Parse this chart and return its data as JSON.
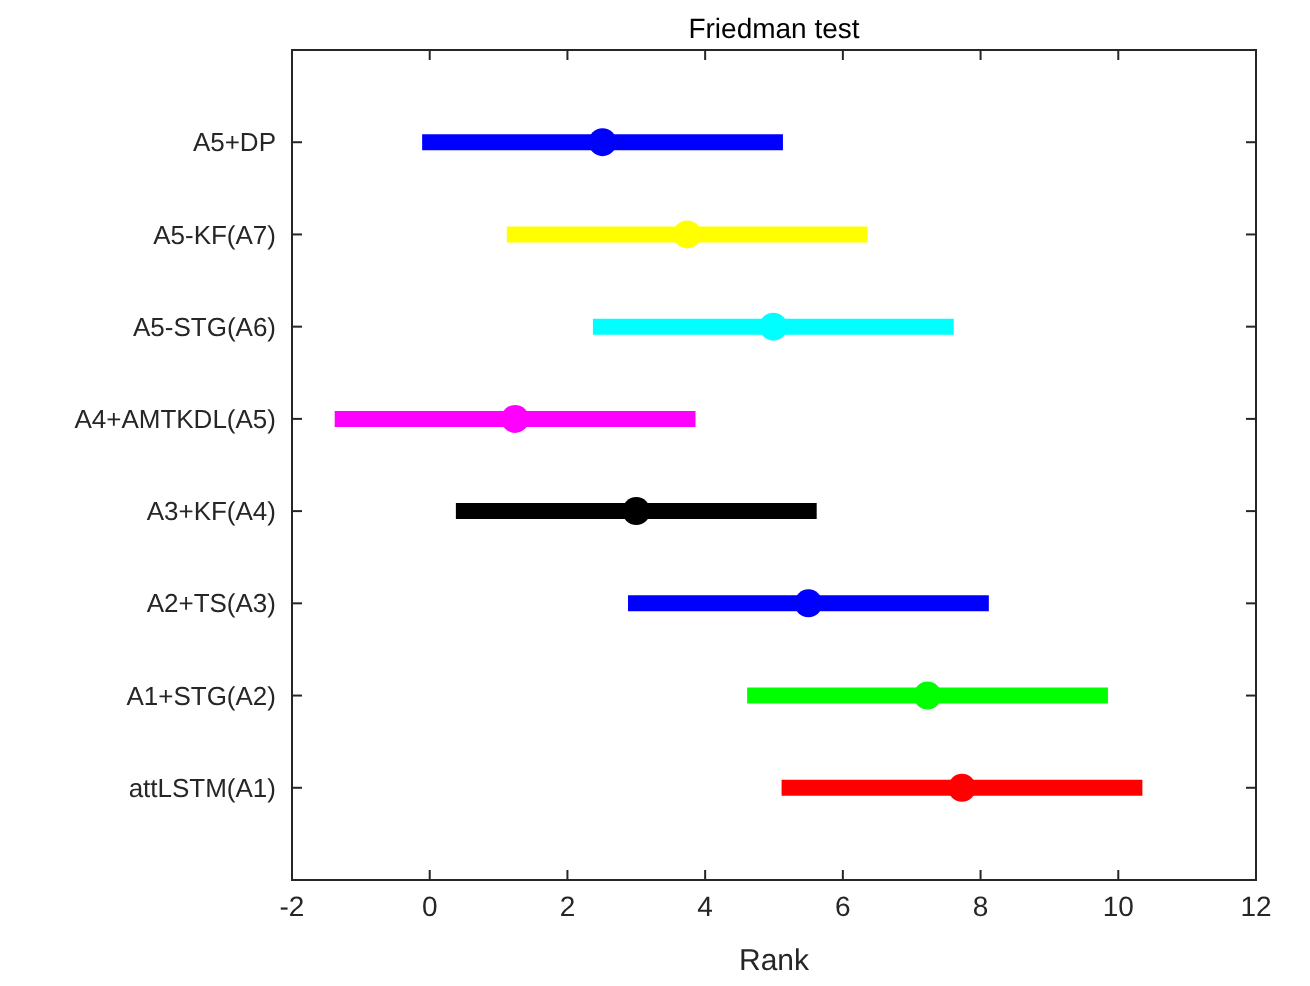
{
  "chart_data": {
    "type": "scatter",
    "orientation": "horizontal",
    "title": "Friedman test",
    "xlabel": "Rank",
    "categories": [
      "A5+DP",
      "A5-KF(A7)",
      "A5-STG(A6)",
      "A4+AMTKDL(A5)",
      "A3+KF(A4)",
      "A2+TS(A3)",
      "A1+STG(A2)",
      "attLSTM(A1)"
    ],
    "values": [
      2.51,
      3.74,
      4.99,
      1.24,
      3.0,
      5.5,
      7.23,
      7.73
    ],
    "errors": [
      2.62,
      2.62,
      2.62,
      2.62,
      2.62,
      2.62,
      2.62,
      2.62
    ],
    "colors": [
      "#0000ff",
      "#ffff00",
      "#00ffff",
      "#ff00ff",
      "#000000",
      "#0000ff",
      "#00ff00",
      "#ff0000"
    ],
    "xlim": [
      -2,
      12
    ],
    "xticks": [
      -2,
      0,
      2,
      4,
      6,
      8,
      10,
      12
    ],
    "marker": "circle",
    "grid": false
  }
}
